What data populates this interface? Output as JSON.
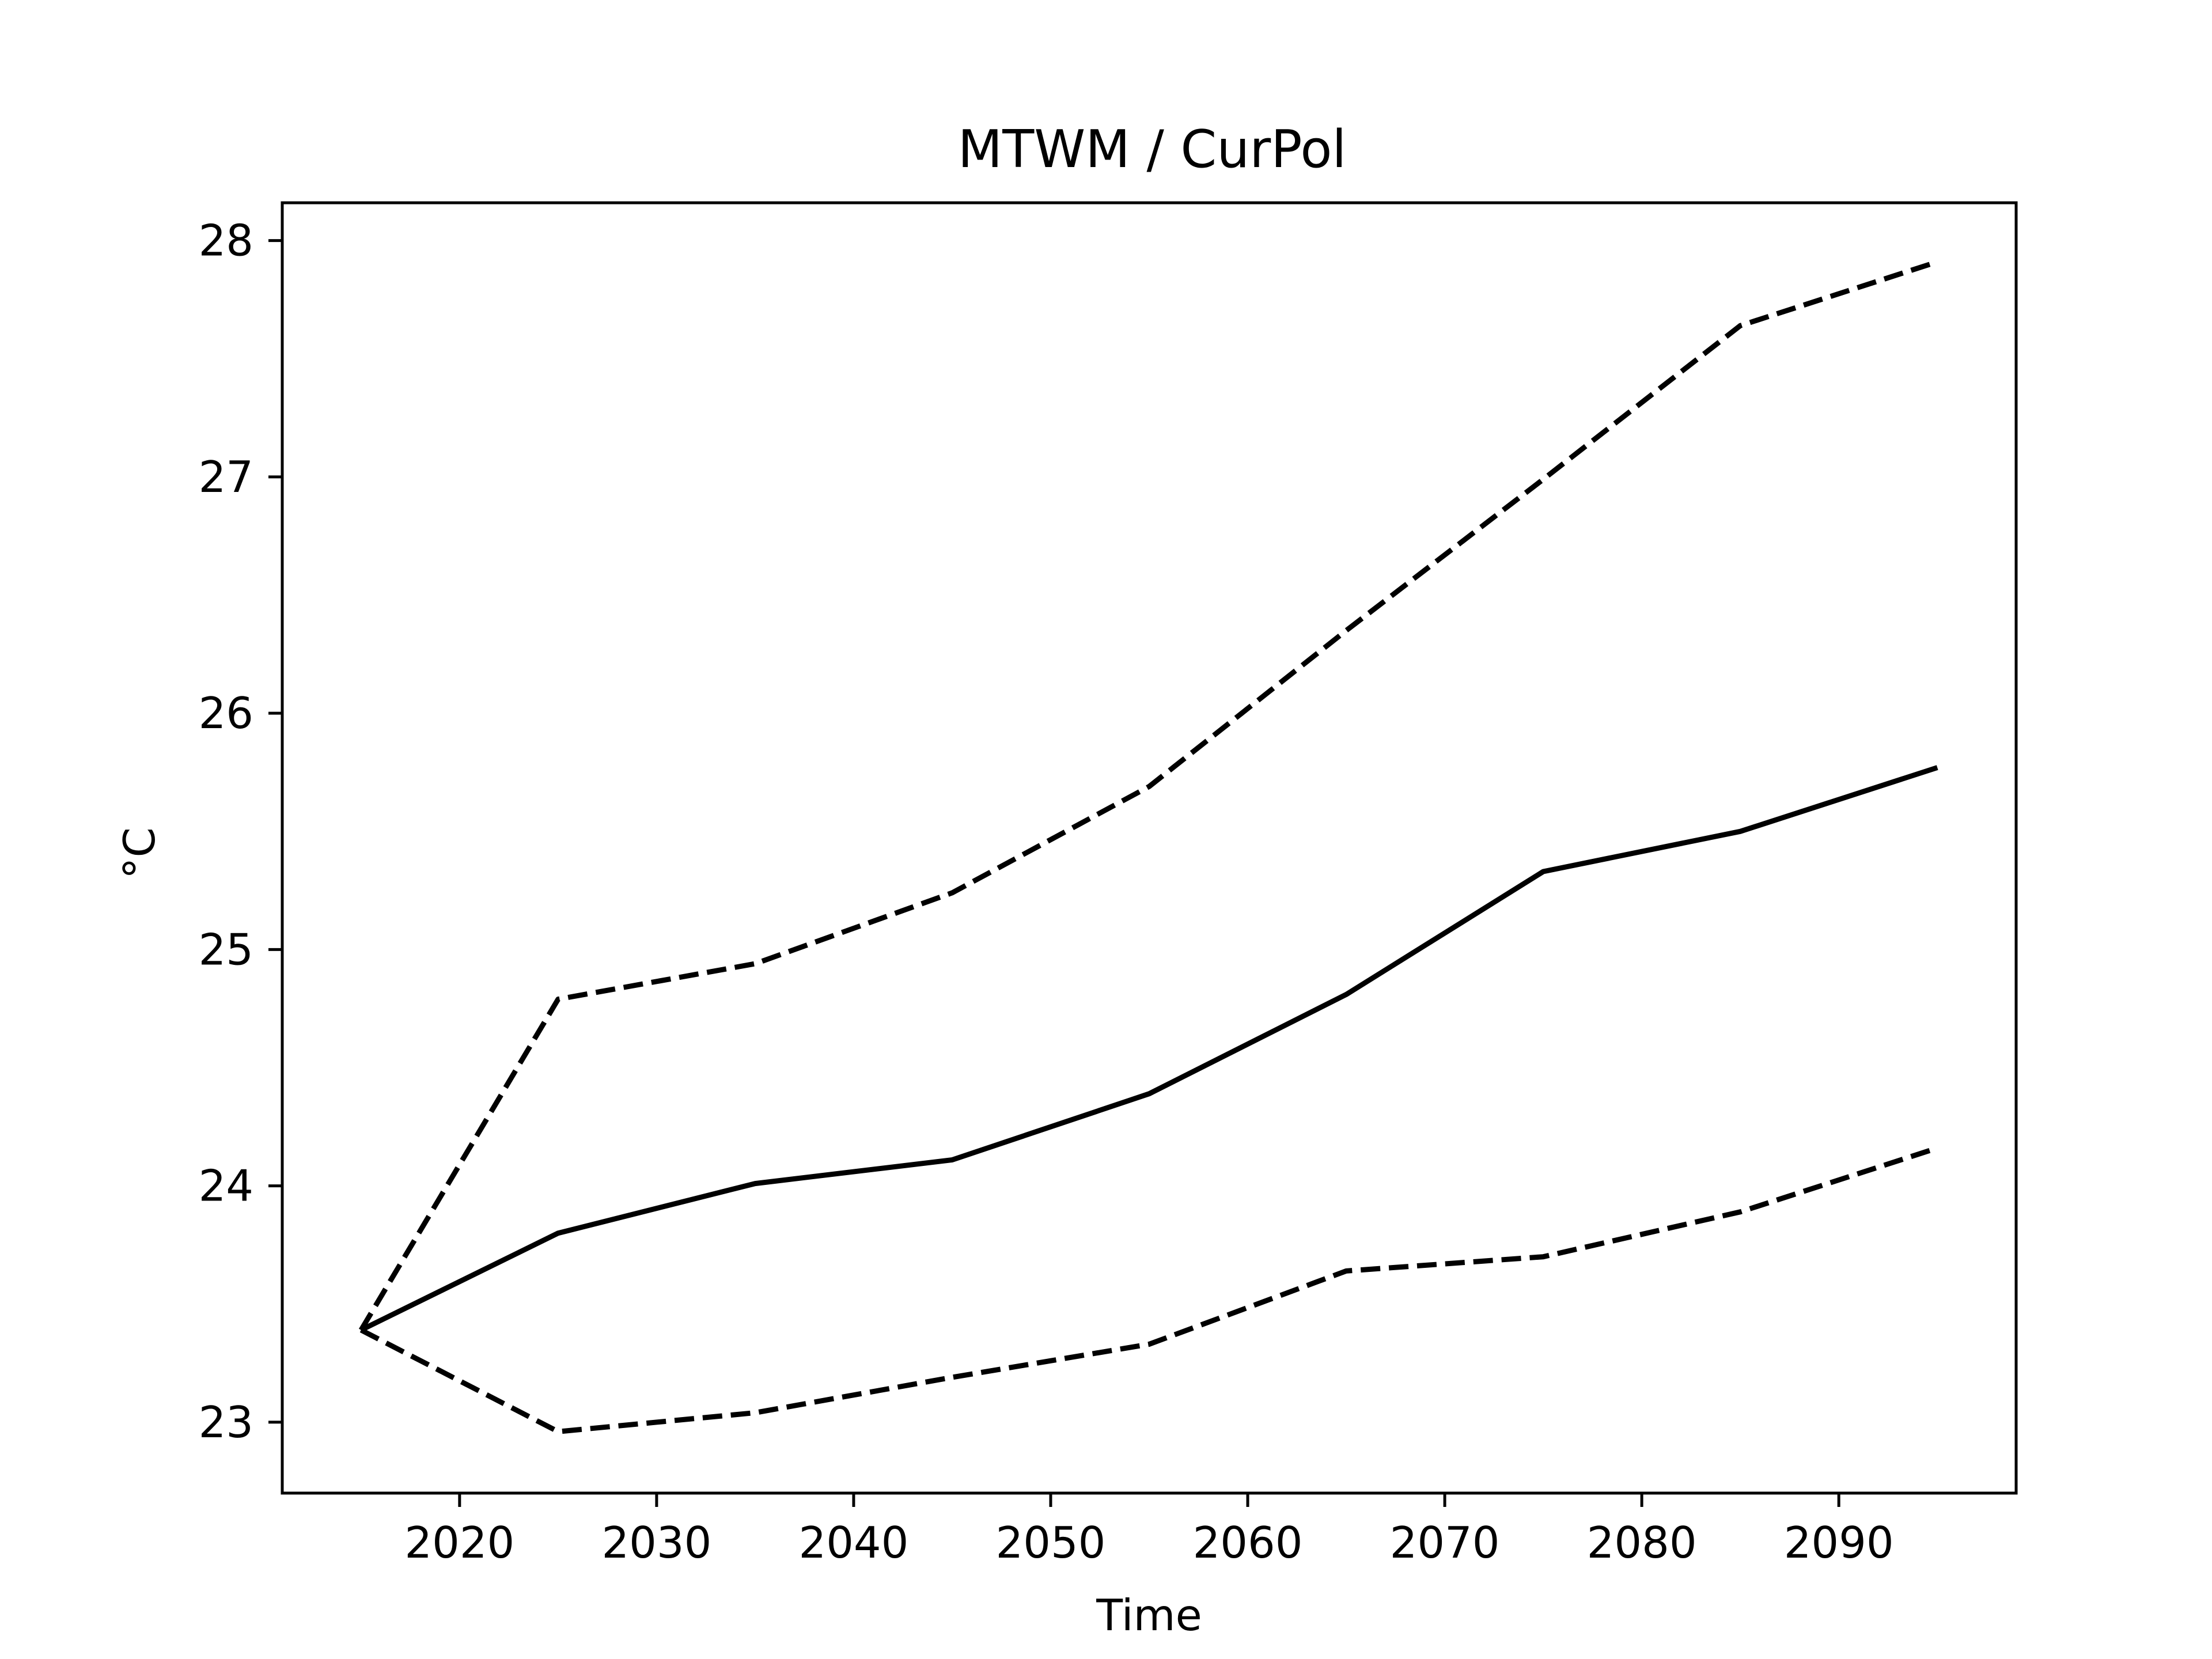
{
  "chart_data": {
    "type": "line",
    "title": "MTWM / CurPol",
    "xlabel": "Time",
    "ylabel": "°C",
    "xlim": [
      2011,
      2099
    ],
    "ylim": [
      22.7,
      28.16
    ],
    "xticks": [
      2020,
      2030,
      2040,
      2050,
      2060,
      2070,
      2080,
      2090
    ],
    "yticks": [
      23,
      24,
      25,
      26,
      27,
      28
    ],
    "grid": false,
    "x": [
      2015,
      2025,
      2035,
      2045,
      2055,
      2065,
      2075,
      2085,
      2095
    ],
    "series": [
      {
        "style": "solid",
        "color": "#000000",
        "values": [
          23.39,
          23.8,
          24.01,
          24.11,
          24.39,
          24.81,
          25.33,
          25.5,
          25.77
        ]
      },
      {
        "style": "dashed",
        "color": "#000000",
        "values": [
          23.39,
          24.79,
          24.94,
          25.24,
          25.69,
          26.35,
          26.99,
          27.64,
          27.91
        ]
      },
      {
        "style": "dashed",
        "color": "#000000",
        "values": [
          23.39,
          22.96,
          23.04,
          23.19,
          23.33,
          23.64,
          23.7,
          23.89,
          24.16
        ]
      }
    ]
  }
}
